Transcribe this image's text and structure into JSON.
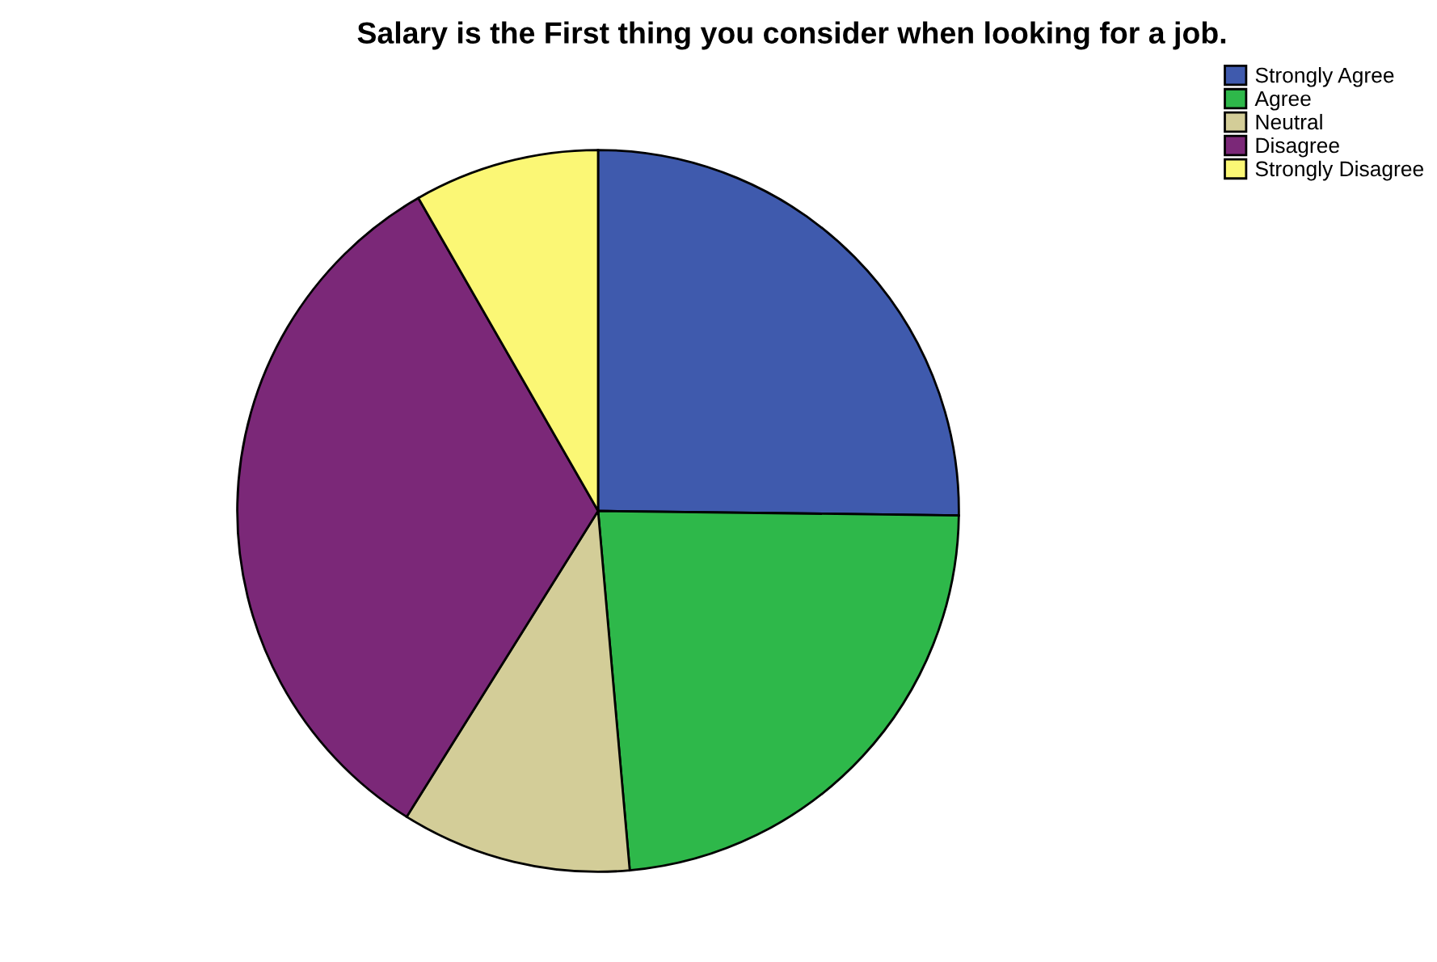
{
  "chart_data": {
    "type": "pie",
    "title": "Salary is the First thing you consider when looking for a job.",
    "categories": [
      "Strongly Agree",
      "Agree",
      "Neutral",
      "Disagree",
      "Strongly Disagree"
    ],
    "values": [
      25.2,
      23.4,
      10.3,
      32.8,
      8.3
    ],
    "colors": [
      "#3f5aad",
      "#2eb84a",
      "#d3cd98",
      "#7b2878",
      "#fbf775"
    ],
    "legend": "top right"
  }
}
